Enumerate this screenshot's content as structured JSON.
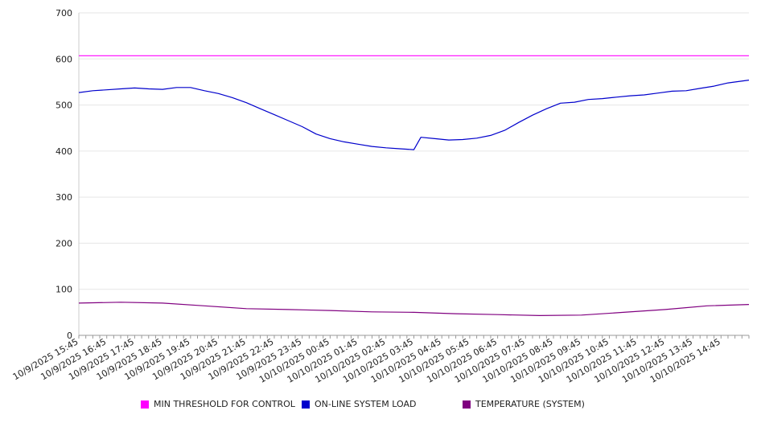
{
  "chart_data": {
    "type": "line",
    "ylim": [
      0,
      700
    ],
    "y_ticks": [
      0,
      100,
      200,
      300,
      400,
      500,
      600,
      700
    ],
    "grid": true,
    "legend_position": "bottom",
    "x_tick_labels": [
      "10/9/2025 15:45",
      "10/9/2025 16:45",
      "10/9/2025 17:45",
      "10/9/2025 18:45",
      "10/9/2025 19:45",
      "10/9/2025 20:45",
      "10/9/2025 21:45",
      "10/9/2025 22:45",
      "10/9/2025 23:45",
      "10/10/2025 00:45",
      "10/10/2025 01:45",
      "10/10/2025 02:45",
      "10/10/2025 03:45",
      "10/10/2025 04:45",
      "10/10/2025 05:45",
      "10/10/2025 06:45",
      "10/10/2025 07:45",
      "10/10/2025 08:45",
      "10/10/2025 09:45",
      "10/10/2025 10:45",
      "10/10/2025 11:45",
      "10/10/2025 12:45",
      "10/10/2025 13:45",
      "10/10/2025 14:45"
    ],
    "x_start": "10/9/2025 15:45",
    "x_end": "10/10/2025 15:45",
    "series": [
      {
        "name": "MIN THRESHOLD FOR CONTROL",
        "color": "#ff00ff",
        "points": [
          [
            "10/9/2025 15:45",
            607
          ],
          [
            "10/10/2025 15:45",
            607
          ]
        ]
      },
      {
        "name": "ON-LINE SYSTEM LOAD",
        "color": "#0000cc",
        "points": [
          [
            "10/9/2025 15:45",
            527
          ],
          [
            "10/9/2025 16:15",
            531
          ],
          [
            "10/9/2025 16:45",
            533
          ],
          [
            "10/9/2025 17:15",
            535
          ],
          [
            "10/9/2025 17:45",
            537
          ],
          [
            "10/9/2025 18:15",
            535
          ],
          [
            "10/9/2025 18:45",
            534
          ],
          [
            "10/9/2025 19:15",
            538
          ],
          [
            "10/9/2025 19:45",
            538
          ],
          [
            "10/9/2025 20:15",
            531
          ],
          [
            "10/9/2025 20:45",
            525
          ],
          [
            "10/9/2025 21:15",
            516
          ],
          [
            "10/9/2025 21:45",
            505
          ],
          [
            "10/9/2025 22:15",
            492
          ],
          [
            "10/9/2025 22:45",
            479
          ],
          [
            "10/9/2025 23:15",
            466
          ],
          [
            "10/9/2025 23:45",
            453
          ],
          [
            "10/10/2025 00:15",
            437
          ],
          [
            "10/10/2025 00:45",
            427
          ],
          [
            "10/10/2025 01:15",
            420
          ],
          [
            "10/10/2025 01:45",
            415
          ],
          [
            "10/10/2025 02:15",
            410
          ],
          [
            "10/10/2025 02:45",
            407
          ],
          [
            "10/10/2025 03:15",
            405
          ],
          [
            "10/10/2025 03:45",
            403
          ],
          [
            "10/10/2025 04:00",
            430
          ],
          [
            "10/10/2025 04:30",
            427
          ],
          [
            "10/10/2025 05:00",
            424
          ],
          [
            "10/10/2025 05:30",
            425
          ],
          [
            "10/10/2025 06:00",
            428
          ],
          [
            "10/10/2025 06:30",
            434
          ],
          [
            "10/10/2025 07:00",
            445
          ],
          [
            "10/10/2025 07:30",
            462
          ],
          [
            "10/10/2025 08:00",
            478
          ],
          [
            "10/10/2025 08:30",
            492
          ],
          [
            "10/10/2025 09:00",
            504
          ],
          [
            "10/10/2025 09:30",
            506
          ],
          [
            "10/10/2025 10:00",
            512
          ],
          [
            "10/10/2025 10:30",
            514
          ],
          [
            "10/10/2025 11:00",
            517
          ],
          [
            "10/10/2025 11:30",
            520
          ],
          [
            "10/10/2025 12:00",
            522
          ],
          [
            "10/10/2025 12:30",
            526
          ],
          [
            "10/10/2025 13:00",
            530
          ],
          [
            "10/10/2025 13:30",
            531
          ],
          [
            "10/10/2025 14:00",
            536
          ],
          [
            "10/10/2025 14:30",
            541
          ],
          [
            "10/10/2025 15:00",
            548
          ],
          [
            "10/10/2025 15:45",
            554
          ]
        ]
      },
      {
        "name": "TEMPERATURE (SYSTEM)",
        "color": "#800080",
        "points": [
          [
            "10/9/2025 15:45",
            70
          ],
          [
            "10/9/2025 17:15",
            72
          ],
          [
            "10/9/2025 18:45",
            70
          ],
          [
            "10/9/2025 20:15",
            64
          ],
          [
            "10/9/2025 21:45",
            58
          ],
          [
            "10/9/2025 23:15",
            56
          ],
          [
            "10/10/2025 00:45",
            54
          ],
          [
            "10/10/2025 02:15",
            51
          ],
          [
            "10/10/2025 03:45",
            50
          ],
          [
            "10/10/2025 05:15",
            47
          ],
          [
            "10/10/2025 06:45",
            45
          ],
          [
            "10/10/2025 08:15",
            43
          ],
          [
            "10/10/2025 09:45",
            44
          ],
          [
            "10/10/2025 11:15",
            50
          ],
          [
            "10/10/2025 12:45",
            56
          ],
          [
            "10/10/2025 14:15",
            64
          ],
          [
            "10/10/2025 15:45",
            67
          ]
        ]
      }
    ]
  },
  "legend": [
    {
      "label": "MIN THRESHOLD FOR CONTROL",
      "color": "#ff00ff"
    },
    {
      "label": "ON-LINE SYSTEM LOAD",
      "color": "#0000cc"
    },
    {
      "label": "TEMPERATURE (SYSTEM)",
      "color": "#800080"
    }
  ]
}
